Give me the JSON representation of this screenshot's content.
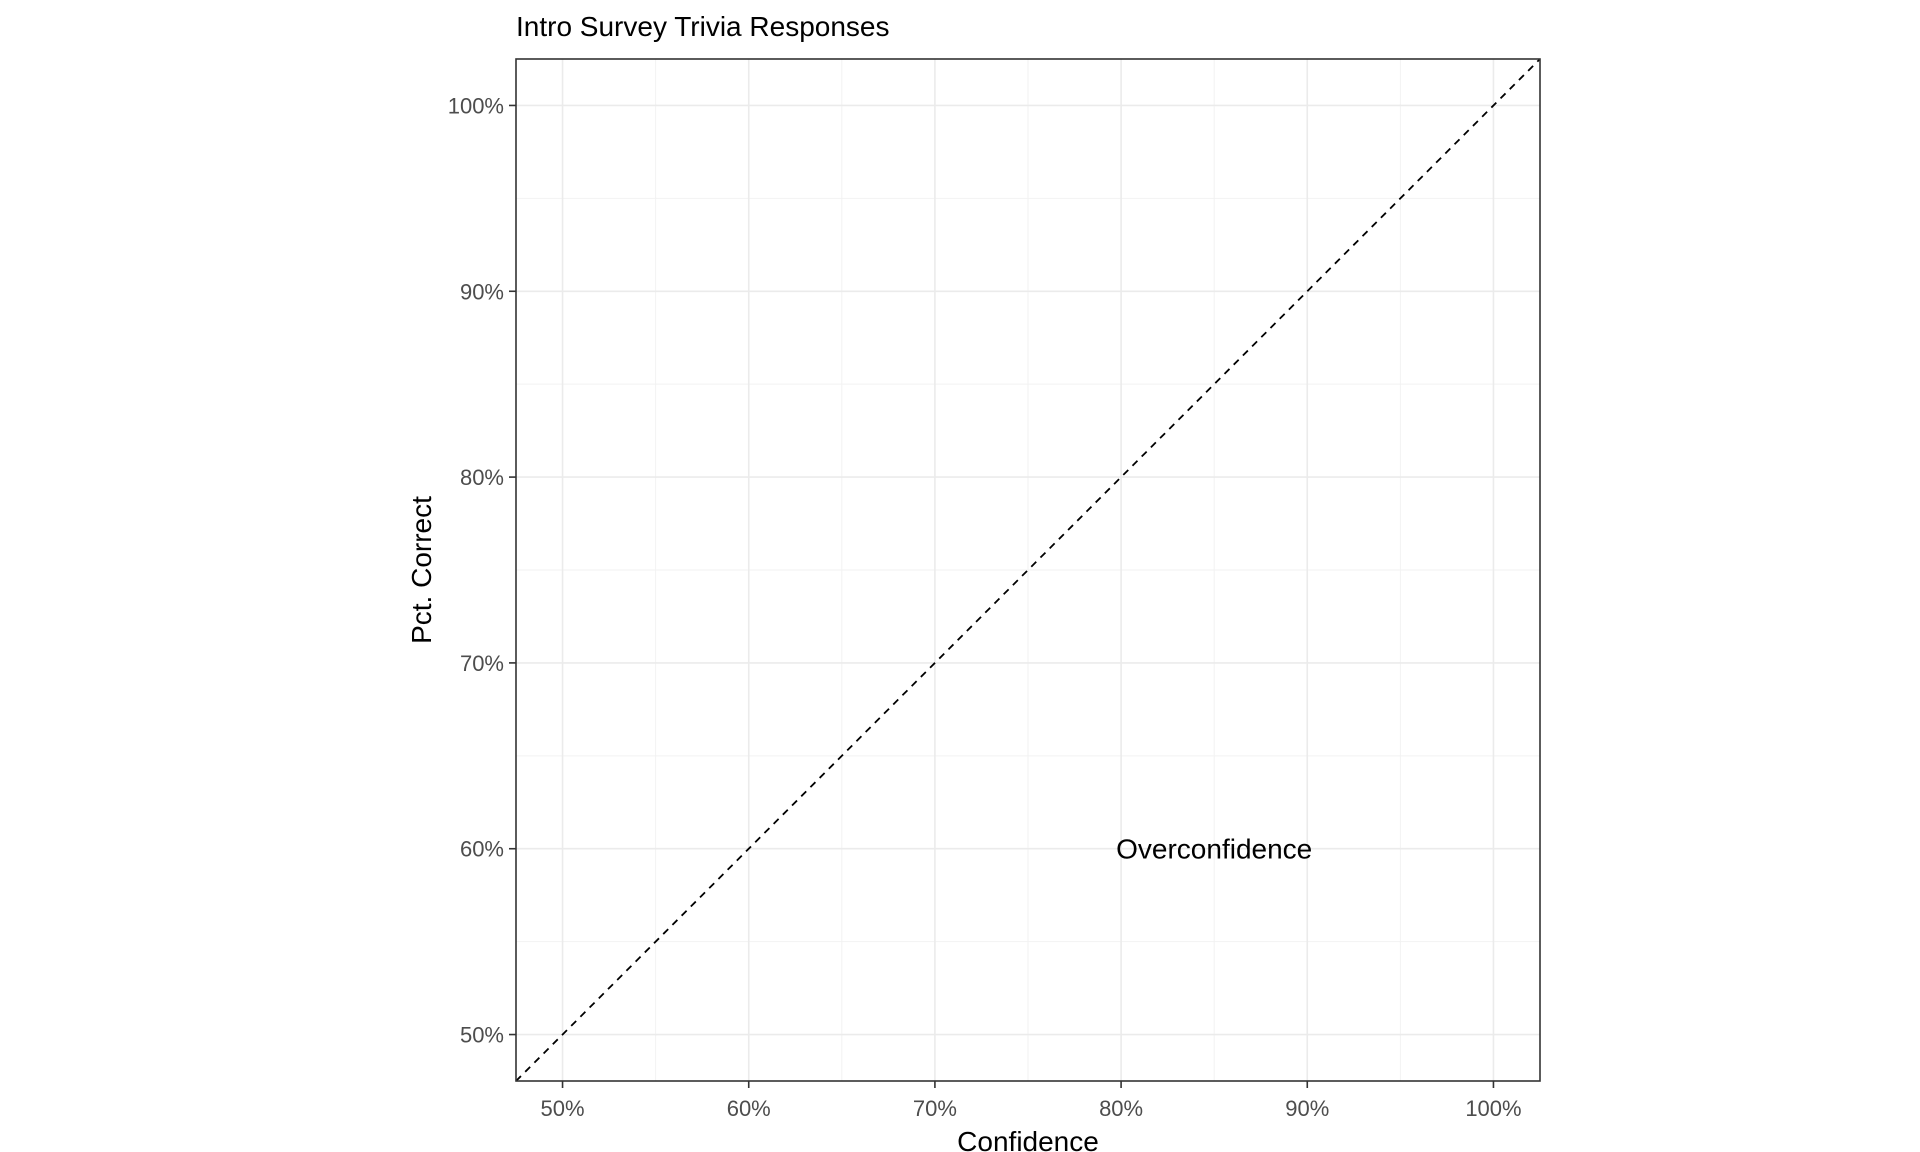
{
  "chart_data": {
    "type": "line",
    "title": "Intro Survey Trivia Responses",
    "xlabel": "Confidence",
    "ylabel": "Pct. Correct",
    "xlim": [
      0.475,
      1.025
    ],
    "ylim": [
      0.475,
      1.025
    ],
    "x_ticks": [
      0.5,
      0.6,
      0.7,
      0.8,
      0.9,
      1.0
    ],
    "x_tick_labels": [
      "50%",
      "60%",
      "70%",
      "80%",
      "90%",
      "100%"
    ],
    "y_ticks": [
      0.5,
      0.6,
      0.7,
      0.8,
      0.9,
      1.0
    ],
    "y_tick_labels": [
      "50%",
      "60%",
      "70%",
      "80%",
      "90%",
      "100%"
    ],
    "grid": true,
    "reference_line": {
      "style": "dashed",
      "color": "#000000",
      "points": [
        [
          0.475,
          0.475
        ],
        [
          1.025,
          1.025
        ]
      ]
    },
    "annotations": [
      {
        "text": "Overconfidence",
        "x": 0.85,
        "y": 0.6
      }
    ],
    "series": []
  }
}
